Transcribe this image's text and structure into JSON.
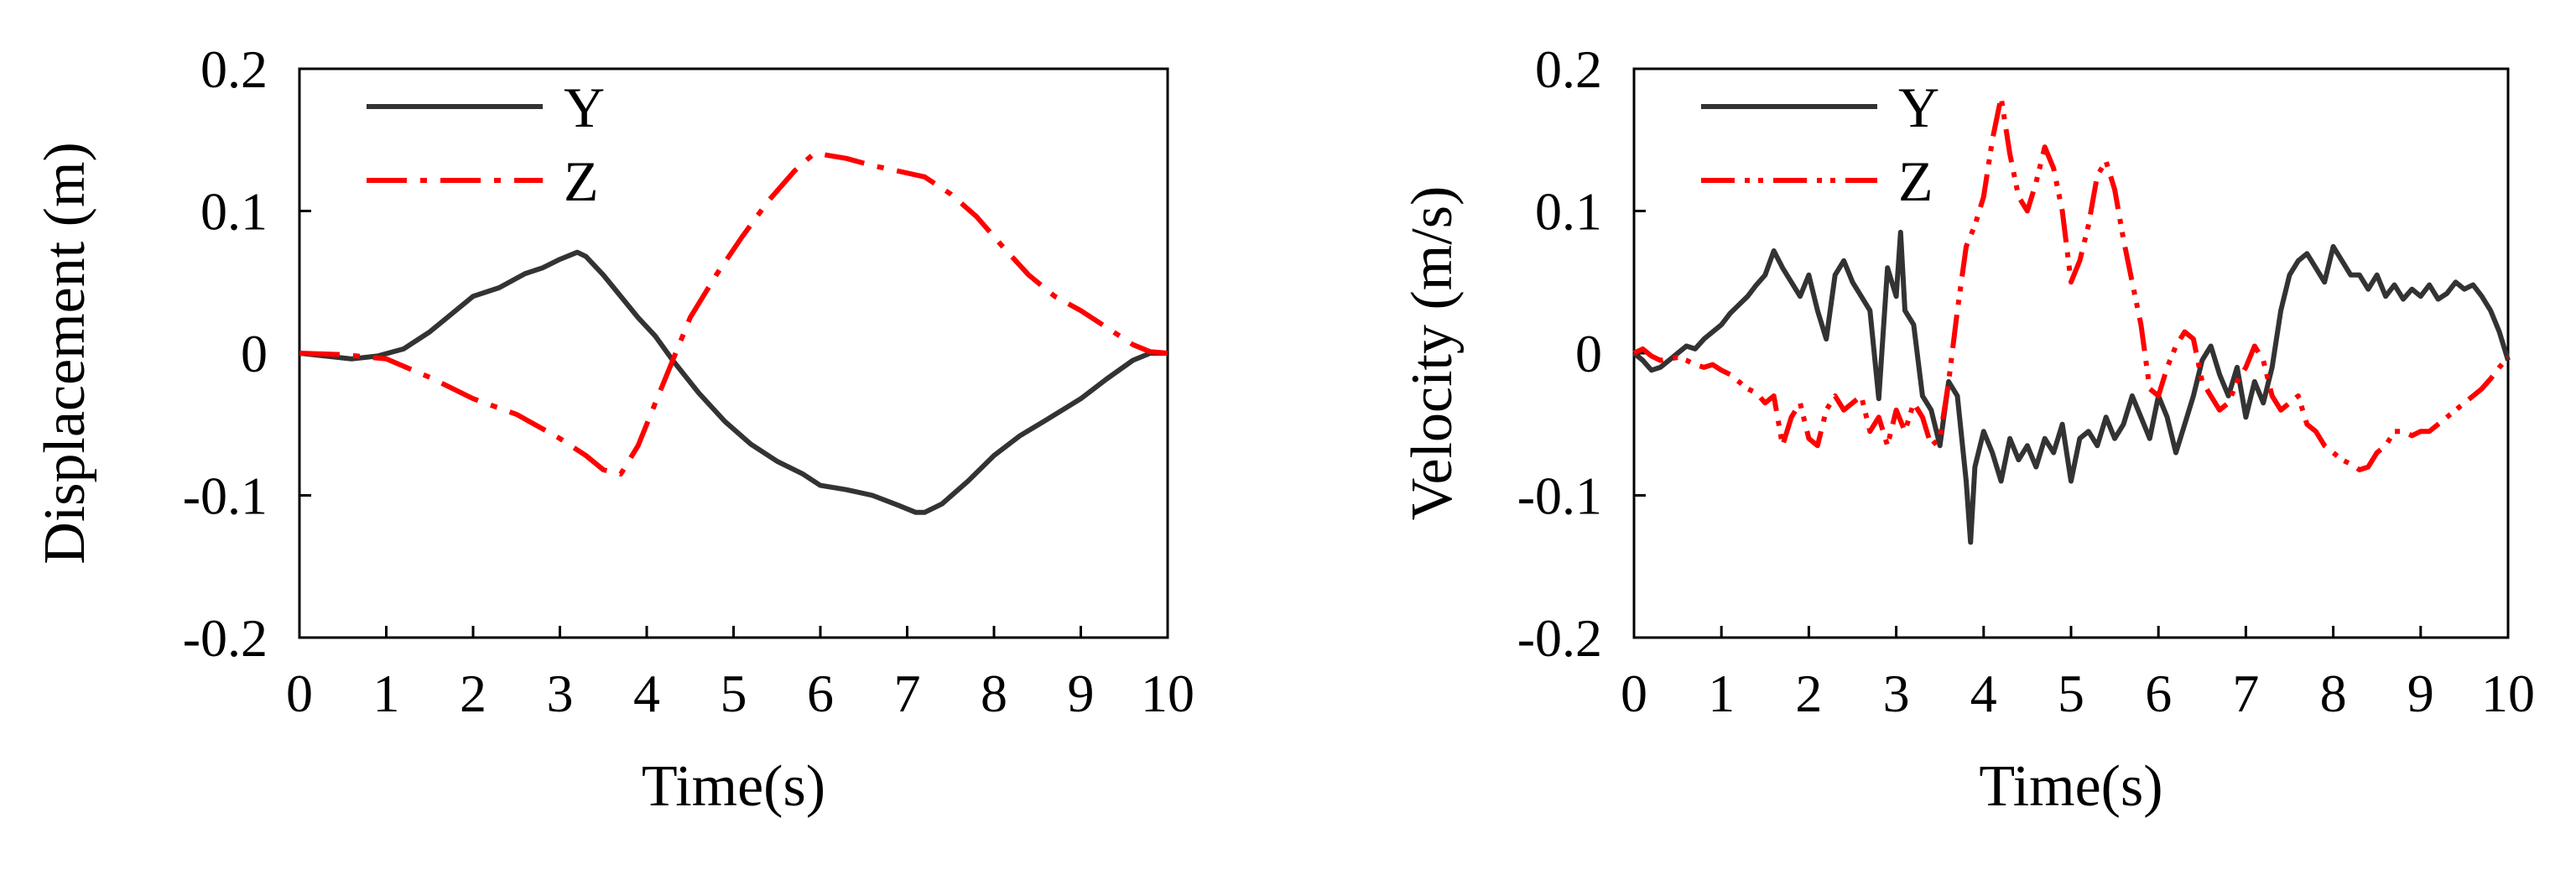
{
  "chart_data": [
    {
      "type": "line",
      "title": "",
      "xlabel": "Time(s)",
      "ylabel": "Displacement (m)",
      "xlim": [
        0,
        10
      ],
      "ylim": [
        -0.2,
        0.2
      ],
      "xticks": [
        "0",
        "1",
        "2",
        "3",
        "4",
        "5",
        "6",
        "7",
        "8",
        "9",
        "10"
      ],
      "yticks": [
        "0.2",
        "0.1",
        "0",
        "-0.1",
        "-0.2"
      ],
      "legend": "top-left",
      "grid": false,
      "series": [
        {
          "name": "Y",
          "color": "#333333",
          "style": "solid",
          "x": [
            0,
            0.3,
            0.6,
            0.9,
            1.2,
            1.5,
            1.8,
            2.0,
            2.3,
            2.6,
            2.8,
            3.0,
            3.2,
            3.3,
            3.5,
            3.7,
            3.9,
            4.1,
            4.3,
            4.6,
            4.9,
            5.2,
            5.5,
            5.8,
            6.0,
            6.3,
            6.6,
            6.9,
            7.1,
            7.2,
            7.4,
            7.7,
            8.0,
            8.3,
            8.6,
            9.0,
            9.3,
            9.6,
            9.8,
            10.0
          ],
          "values": [
            0,
            -0.002,
            -0.004,
            -0.002,
            0.003,
            0.015,
            0.03,
            0.04,
            0.046,
            0.056,
            0.06,
            0.066,
            0.071,
            0.068,
            0.055,
            0.04,
            0.025,
            0.012,
            -0.005,
            -0.028,
            -0.048,
            -0.064,
            -0.076,
            -0.085,
            -0.093,
            -0.096,
            -0.1,
            -0.107,
            -0.112,
            -0.112,
            -0.106,
            -0.09,
            -0.072,
            -0.058,
            -0.047,
            -0.032,
            -0.018,
            -0.005,
            0,
            0
          ]
        },
        {
          "name": "Z",
          "color": "#ff0000",
          "style": "dashdot",
          "x": [
            0,
            0.5,
            1.0,
            1.5,
            2.0,
            2.5,
            3.0,
            3.3,
            3.5,
            3.7,
            3.9,
            4.1,
            4.3,
            4.5,
            4.8,
            5.1,
            5.4,
            5.7,
            5.9,
            6.0,
            6.3,
            6.6,
            6.9,
            7.2,
            7.5,
            7.8,
            8.1,
            8.4,
            8.7,
            9.0,
            9.3,
            9.6,
            9.8,
            10.0
          ],
          "values": [
            0,
            -0.001,
            -0.004,
            -0.017,
            -0.032,
            -0.043,
            -0.06,
            -0.072,
            -0.082,
            -0.085,
            -0.065,
            -0.035,
            -0.005,
            0.025,
            0.055,
            0.082,
            0.107,
            0.128,
            0.139,
            0.14,
            0.137,
            0.132,
            0.128,
            0.124,
            0.112,
            0.096,
            0.075,
            0.055,
            0.04,
            0.03,
            0.018,
            0.006,
            0.001,
            0
          ]
        }
      ]
    },
    {
      "type": "line",
      "title": "",
      "xlabel": "Time(s)",
      "ylabel": "Velocity (m/s)",
      "xlim": [
        0,
        10
      ],
      "ylim": [
        -0.2,
        0.2
      ],
      "xticks": [
        "0",
        "1",
        "2",
        "3",
        "4",
        "5",
        "6",
        "7",
        "8",
        "9",
        "10"
      ],
      "yticks": [
        "0.2",
        "0.1",
        "0",
        "-0.1",
        "-0.2"
      ],
      "legend": "top-left",
      "grid": false,
      "series": [
        {
          "name": "Y",
          "color": "#333333",
          "style": "solid",
          "x": [
            0,
            0.1,
            0.2,
            0.3,
            0.4,
            0.5,
            0.6,
            0.7,
            0.8,
            0.9,
            1.0,
            1.1,
            1.2,
            1.3,
            1.4,
            1.5,
            1.6,
            1.7,
            1.8,
            1.9,
            2.0,
            2.1,
            2.2,
            2.3,
            2.4,
            2.5,
            2.6,
            2.7,
            2.8,
            2.9,
            3.0,
            3.05,
            3.1,
            3.2,
            3.3,
            3.4,
            3.5,
            3.6,
            3.7,
            3.8,
            3.85,
            3.9,
            4.0,
            4.1,
            4.2,
            4.3,
            4.4,
            4.5,
            4.6,
            4.7,
            4.8,
            4.9,
            5.0,
            5.1,
            5.2,
            5.3,
            5.4,
            5.5,
            5.6,
            5.7,
            5.8,
            5.9,
            6.0,
            6.1,
            6.2,
            6.3,
            6.4,
            6.5,
            6.6,
            6.7,
            6.8,
            6.9,
            7.0,
            7.1,
            7.2,
            7.3,
            7.4,
            7.5,
            7.6,
            7.7,
            7.8,
            7.9,
            8.0,
            8.1,
            8.2,
            8.3,
            8.4,
            8.5,
            8.6,
            8.7,
            8.8,
            8.9,
            9.0,
            9.1,
            9.2,
            9.3,
            9.4,
            9.5,
            9.6,
            9.7,
            9.8,
            9.9,
            10.0
          ],
          "values": [
            0,
            -0.005,
            -0.012,
            -0.01,
            -0.005,
            0,
            0.005,
            0.003,
            0.01,
            0.015,
            0.02,
            0.028,
            0.034,
            0.04,
            0.048,
            0.055,
            0.072,
            0.06,
            0.05,
            0.04,
            0.055,
            0.03,
            0.01,
            0.055,
            0.065,
            0.05,
            0.04,
            0.03,
            -0.032,
            0.06,
            0.04,
            0.085,
            0.03,
            0.02,
            -0.03,
            -0.04,
            -0.065,
            -0.02,
            -0.03,
            -0.09,
            -0.133,
            -0.08,
            -0.055,
            -0.07,
            -0.09,
            -0.06,
            -0.075,
            -0.065,
            -0.08,
            -0.06,
            -0.07,
            -0.05,
            -0.09,
            -0.06,
            -0.055,
            -0.065,
            -0.045,
            -0.06,
            -0.05,
            -0.03,
            -0.045,
            -0.06,
            -0.03,
            -0.045,
            -0.07,
            -0.05,
            -0.03,
            -0.005,
            0.005,
            -0.015,
            -0.03,
            -0.01,
            -0.045,
            -0.02,
            -0.035,
            -0.01,
            0.03,
            0.055,
            0.065,
            0.07,
            0.06,
            0.05,
            0.075,
            0.065,
            0.055,
            0.055,
            0.045,
            0.055,
            0.04,
            0.048,
            0.038,
            0.045,
            0.04,
            0.048,
            0.038,
            0.042,
            0.05,
            0.045,
            0.048,
            0.04,
            0.03,
            0.015,
            -0.005
          ],
          "title": ""
        },
        {
          "name": "Z",
          "color": "#ff0000",
          "style": "dashdotdot",
          "x": [
            0,
            0.1,
            0.2,
            0.3,
            0.4,
            0.5,
            0.6,
            0.7,
            0.8,
            0.9,
            1.0,
            1.1,
            1.2,
            1.3,
            1.4,
            1.5,
            1.6,
            1.7,
            1.8,
            1.9,
            2.0,
            2.1,
            2.2,
            2.3,
            2.4,
            2.5,
            2.6,
            2.7,
            2.8,
            2.9,
            3.0,
            3.1,
            3.2,
            3.3,
            3.4,
            3.5,
            3.6,
            3.7,
            3.8,
            3.9,
            4.0,
            4.1,
            4.2,
            4.3,
            4.4,
            4.5,
            4.6,
            4.7,
            4.8,
            4.9,
            5.0,
            5.1,
            5.2,
            5.3,
            5.4,
            5.5,
            5.6,
            5.7,
            5.8,
            5.9,
            6.0,
            6.1,
            6.2,
            6.3,
            6.4,
            6.5,
            6.6,
            6.7,
            6.8,
            6.9,
            7.0,
            7.1,
            7.2,
            7.3,
            7.4,
            7.5,
            7.6,
            7.7,
            7.8,
            7.9,
            8.0,
            8.1,
            8.2,
            8.3,
            8.4,
            8.5,
            8.6,
            8.7,
            8.8,
            8.9,
            9.0,
            9.1,
            9.2,
            9.3,
            9.4,
            9.5,
            9.6,
            9.7,
            9.8,
            9.9,
            10.0
          ],
          "values": [
            0,
            0.003,
            -0.002,
            -0.005,
            -0.004,
            -0.003,
            -0.005,
            -0.008,
            -0.01,
            -0.008,
            -0.012,
            -0.015,
            -0.02,
            -0.025,
            -0.028,
            -0.035,
            -0.03,
            -0.065,
            -0.045,
            -0.035,
            -0.06,
            -0.065,
            -0.04,
            -0.03,
            -0.04,
            -0.035,
            -0.03,
            -0.055,
            -0.045,
            -0.065,
            -0.04,
            -0.055,
            -0.035,
            -0.045,
            -0.065,
            -0.06,
            -0.02,
            0.03,
            0.075,
            0.09,
            0.11,
            0.15,
            0.18,
            0.14,
            0.11,
            0.1,
            0.12,
            0.145,
            0.13,
            0.1,
            0.05,
            0.065,
            0.09,
            0.125,
            0.135,
            0.115,
            0.08,
            0.05,
            0.02,
            -0.025,
            -0.03,
            -0.01,
            0.005,
            0.015,
            0.01,
            -0.02,
            -0.03,
            -0.04,
            -0.035,
            -0.02,
            -0.01,
            0.005,
            -0.005,
            -0.03,
            -0.04,
            -0.035,
            -0.03,
            -0.05,
            -0.055,
            -0.065,
            -0.07,
            -0.075,
            -0.078,
            -0.082,
            -0.08,
            -0.07,
            -0.065,
            -0.055,
            -0.055,
            -0.058,
            -0.055,
            -0.055,
            -0.05,
            -0.045,
            -0.04,
            -0.035,
            -0.03,
            -0.025,
            -0.018,
            -0.01,
            -0.003
          ]
        }
      ]
    }
  ]
}
